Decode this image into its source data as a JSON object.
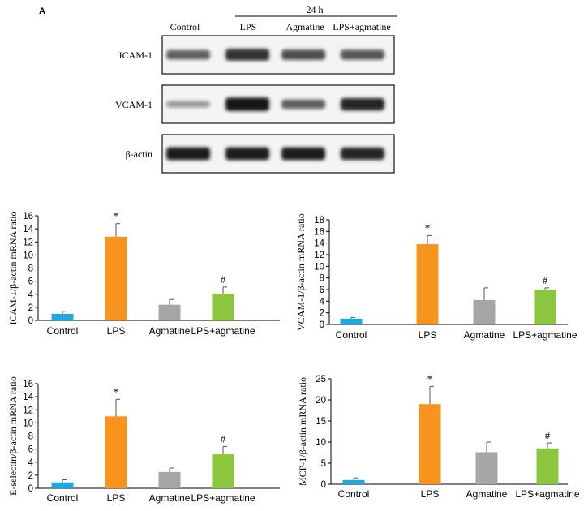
{
  "figure": {
    "panel_label": "A",
    "time_label": "24 h",
    "lane_labels": [
      "Control",
      "LPS",
      "Agmatine",
      "LPS+agmatine"
    ],
    "blots": [
      {
        "label": "ICAM-1",
        "band_intensity": [
          0.55,
          0.8,
          0.65,
          0.6
        ]
      },
      {
        "label": "VCAM-1",
        "band_intensity": [
          0.25,
          0.95,
          0.55,
          0.85
        ]
      },
      {
        "label": "β-actin",
        "band_intensity": [
          0.9,
          0.9,
          0.9,
          0.85
        ]
      }
    ]
  },
  "chart_data": [
    {
      "type": "bar",
      "categories": [
        "Control",
        "LPS",
        "Agmatine",
        "LPS+agmatine"
      ],
      "values": [
        1.0,
        12.8,
        2.4,
        4.1
      ],
      "errors": [
        0.4,
        2.0,
        0.8,
        1.0
      ],
      "annotations": [
        "",
        "*",
        "",
        "#"
      ],
      "colors": [
        "#1fa9e1",
        "#f7941d",
        "#a6a6a6",
        "#8cc63f"
      ],
      "ylabel": "ICAM-1/β-actin mRNA ratio",
      "ylim": [
        0,
        16
      ],
      "yticks": [
        0,
        2,
        4,
        6,
        8,
        10,
        12,
        14,
        16
      ]
    },
    {
      "type": "bar",
      "categories": [
        "Control",
        "LPS",
        "Agmatine",
        "LPS+agmatine"
      ],
      "values": [
        1.0,
        13.8,
        4.2,
        6.0
      ],
      "errors": [
        0.2,
        1.5,
        2.1,
        0.3
      ],
      "annotations": [
        "",
        "*",
        "",
        "#"
      ],
      "colors": [
        "#1fa9e1",
        "#f7941d",
        "#a6a6a6",
        "#8cc63f"
      ],
      "ylabel": "VCAM-1/β-actin mRNA ratio",
      "ylim": [
        0,
        18
      ],
      "yticks": [
        0,
        2,
        4,
        6,
        8,
        10,
        12,
        14,
        16,
        18
      ]
    },
    {
      "type": "bar",
      "categories": [
        "Control",
        "LPS",
        "Agmatine",
        "LPS+agmatine"
      ],
      "values": [
        0.9,
        11.0,
        2.5,
        5.2
      ],
      "errors": [
        0.4,
        2.6,
        0.6,
        1.2
      ],
      "annotations": [
        "",
        "*",
        "",
        "#"
      ],
      "colors": [
        "#1fa9e1",
        "#f7941d",
        "#a6a6a6",
        "#8cc63f"
      ],
      "ylabel": "E-selectin/β-actin mRNA ratio",
      "ylim": [
        0,
        16
      ],
      "yticks": [
        0,
        2,
        4,
        6,
        8,
        10,
        12,
        14,
        16
      ]
    },
    {
      "type": "bar",
      "categories": [
        "Control",
        "LPS",
        "Agmatine",
        "LPS+agmatine"
      ],
      "values": [
        1.0,
        19.0,
        7.6,
        8.5
      ],
      "errors": [
        0.5,
        4.2,
        2.4,
        1.3
      ],
      "annotations": [
        "",
        "*",
        "",
        "#"
      ],
      "colors": [
        "#1fa9e1",
        "#f7941d",
        "#a6a6a6",
        "#8cc63f"
      ],
      "ylabel": "MCP-1/β-actin mRNA ratio",
      "ylim": [
        0,
        25
      ],
      "yticks": [
        0,
        5,
        10,
        15,
        20,
        25
      ]
    }
  ]
}
